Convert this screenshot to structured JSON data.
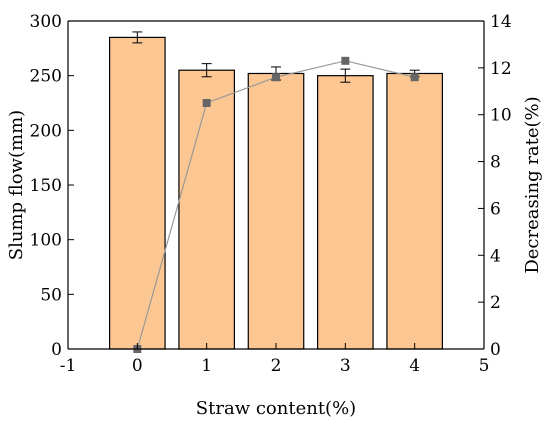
{
  "chart_data": {
    "type": "bar",
    "x": [
      0,
      1,
      2,
      3,
      4
    ],
    "xlim": [
      -1,
      5
    ],
    "xticks": [
      "-1",
      "0",
      "1",
      "2",
      "3",
      "4",
      "5"
    ],
    "xlabel": "Straw content(%)",
    "ylabel": "Slump flow(mm)",
    "ylim": [
      0,
      300
    ],
    "yticks": [
      "0",
      "50",
      "100",
      "150",
      "200",
      "250",
      "300"
    ],
    "y2label": "Decreasing rate(%)",
    "y2lim": [
      0,
      14
    ],
    "y2ticks": [
      "0",
      "2",
      "4",
      "6",
      "8",
      "10",
      "12",
      "14"
    ],
    "series": [
      {
        "kind": "bar",
        "axis": "left",
        "values": [
          285,
          255,
          252,
          250,
          252
        ],
        "errors": [
          5,
          6,
          6,
          6,
          3
        ],
        "color": "#fdc793",
        "edge_color": "#000000"
      },
      {
        "kind": "line",
        "axis": "right",
        "values": [
          0,
          10.5,
          11.6,
          12.3,
          11.6
        ],
        "color": "#999999",
        "marker_color": "#666666",
        "marker": "square"
      }
    ],
    "grid": false,
    "legend": "none"
  }
}
